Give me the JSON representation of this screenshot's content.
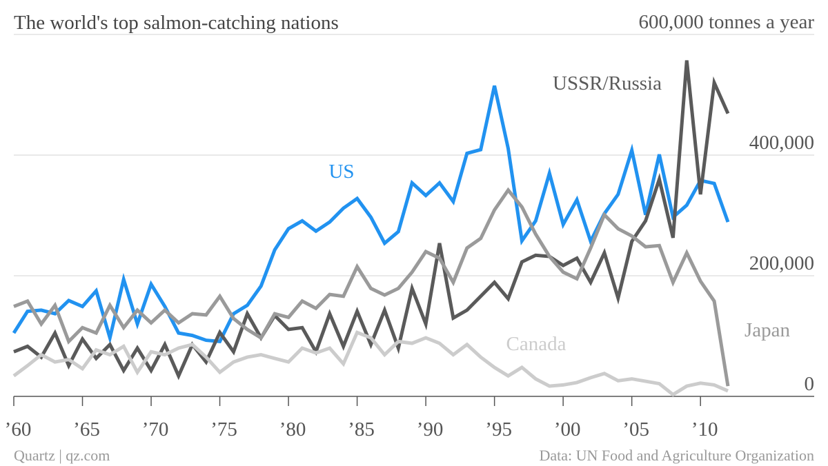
{
  "chart_data": {
    "type": "line",
    "title": "The world's top salmon-catching nations",
    "source": "Data: UN Food and Agriculture Organization",
    "credit": "Quartz | qz.com",
    "x": [
      1960,
      1961,
      1962,
      1963,
      1964,
      1965,
      1966,
      1967,
      1968,
      1969,
      1970,
      1971,
      1972,
      1973,
      1974,
      1975,
      1976,
      1977,
      1978,
      1979,
      1980,
      1981,
      1982,
      1983,
      1984,
      1985,
      1986,
      1987,
      1988,
      1989,
      1990,
      1991,
      1992,
      1993,
      1994,
      1995,
      1996,
      1997,
      1998,
      1999,
      2000,
      2001,
      2002,
      2003,
      2004,
      2005,
      2006,
      2007,
      2008,
      2009,
      2010,
      2011,
      2012
    ],
    "xlim": [
      1960,
      2012
    ],
    "xticks": [
      {
        "value": 1960,
        "label": "’60"
      },
      {
        "value": 1965,
        "label": "’65"
      },
      {
        "value": 1970,
        "label": "’70"
      },
      {
        "value": 1975,
        "label": "’75"
      },
      {
        "value": 1980,
        "label": "’80"
      },
      {
        "value": 1985,
        "label": "’85"
      },
      {
        "value": 1990,
        "label": "’90"
      },
      {
        "value": 1995,
        "label": "’95"
      },
      {
        "value": 2000,
        "label": "’00"
      },
      {
        "value": 2005,
        "label": "’05"
      },
      {
        "value": 2010,
        "label": "’10"
      }
    ],
    "ylim": [
      0,
      600000
    ],
    "yticks": [
      0,
      {
        "value": 200000,
        "label": "200,000"
      },
      {
        "value": 400000,
        "label": "400,000"
      },
      {
        "value": 600000,
        "label": "600,000 tonnes a year"
      }
    ],
    "grid": true,
    "series": [
      {
        "name": "US",
        "color": "#2192f0",
        "values": [
          105000,
          141000,
          143000,
          137000,
          159000,
          149000,
          175000,
          97000,
          194000,
          120000,
          186000,
          149000,
          105000,
          101000,
          93000,
          91000,
          137000,
          151000,
          183000,
          243000,
          278000,
          291000,
          274000,
          289000,
          312000,
          328000,
          297000,
          254000,
          273000,
          354000,
          333000,
          354000,
          323000,
          403000,
          409000,
          515000,
          411000,
          258000,
          291000,
          370000,
          285000,
          326000,
          257000,
          303000,
          335000,
          408000,
          301000,
          401000,
          297000,
          317000,
          358000,
          353000,
          289000
        ]
      },
      {
        "name": "USSR/Russia",
        "color": "#5a5a5a",
        "values": [
          74000,
          83000,
          65000,
          105000,
          51000,
          95000,
          63000,
          86000,
          43000,
          80000,
          43000,
          86000,
          34000,
          86000,
          57000,
          106000,
          74000,
          137000,
          97000,
          134000,
          111000,
          114000,
          74000,
          137000,
          83000,
          141000,
          86000,
          143000,
          80000,
          179000,
          120000,
          254000,
          130000,
          143000,
          166000,
          189000,
          162000,
          223000,
          234000,
          232000,
          217000,
          229000,
          189000,
          238000,
          163000,
          257000,
          291000,
          360000,
          263000,
          557000,
          335000,
          520000,
          469000
        ]
      },
      {
        "name": "Japan",
        "color": "#9a9a9a",
        "values": [
          149000,
          158000,
          120000,
          151000,
          91000,
          114000,
          105000,
          151000,
          114000,
          143000,
          122000,
          143000,
          122000,
          137000,
          135000,
          166000,
          129000,
          111000,
          97000,
          137000,
          131000,
          158000,
          146000,
          169000,
          166000,
          215000,
          179000,
          168000,
          179000,
          206000,
          240000,
          229000,
          189000,
          246000,
          262000,
          309000,
          342000,
          314000,
          269000,
          232000,
          206000,
          195000,
          246000,
          301000,
          278000,
          266000,
          248000,
          250000,
          189000,
          238000,
          191000,
          158000,
          17000
        ]
      },
      {
        "name": "Canada",
        "color": "#cccccc",
        "values": [
          34000,
          51000,
          69000,
          57000,
          61000,
          46000,
          77000,
          69000,
          83000,
          40000,
          74000,
          69000,
          80000,
          86000,
          65000,
          40000,
          57000,
          65000,
          69000,
          63000,
          57000,
          80000,
          72000,
          80000,
          54000,
          106000,
          97000,
          69000,
          91000,
          88000,
          97000,
          88000,
          69000,
          86000,
          65000,
          48000,
          34000,
          48000,
          29000,
          17000,
          19000,
          23000,
          31000,
          38000,
          26000,
          29000,
          25000,
          21000,
          3000,
          17000,
          22000,
          19000,
          9000
        ]
      }
    ]
  }
}
